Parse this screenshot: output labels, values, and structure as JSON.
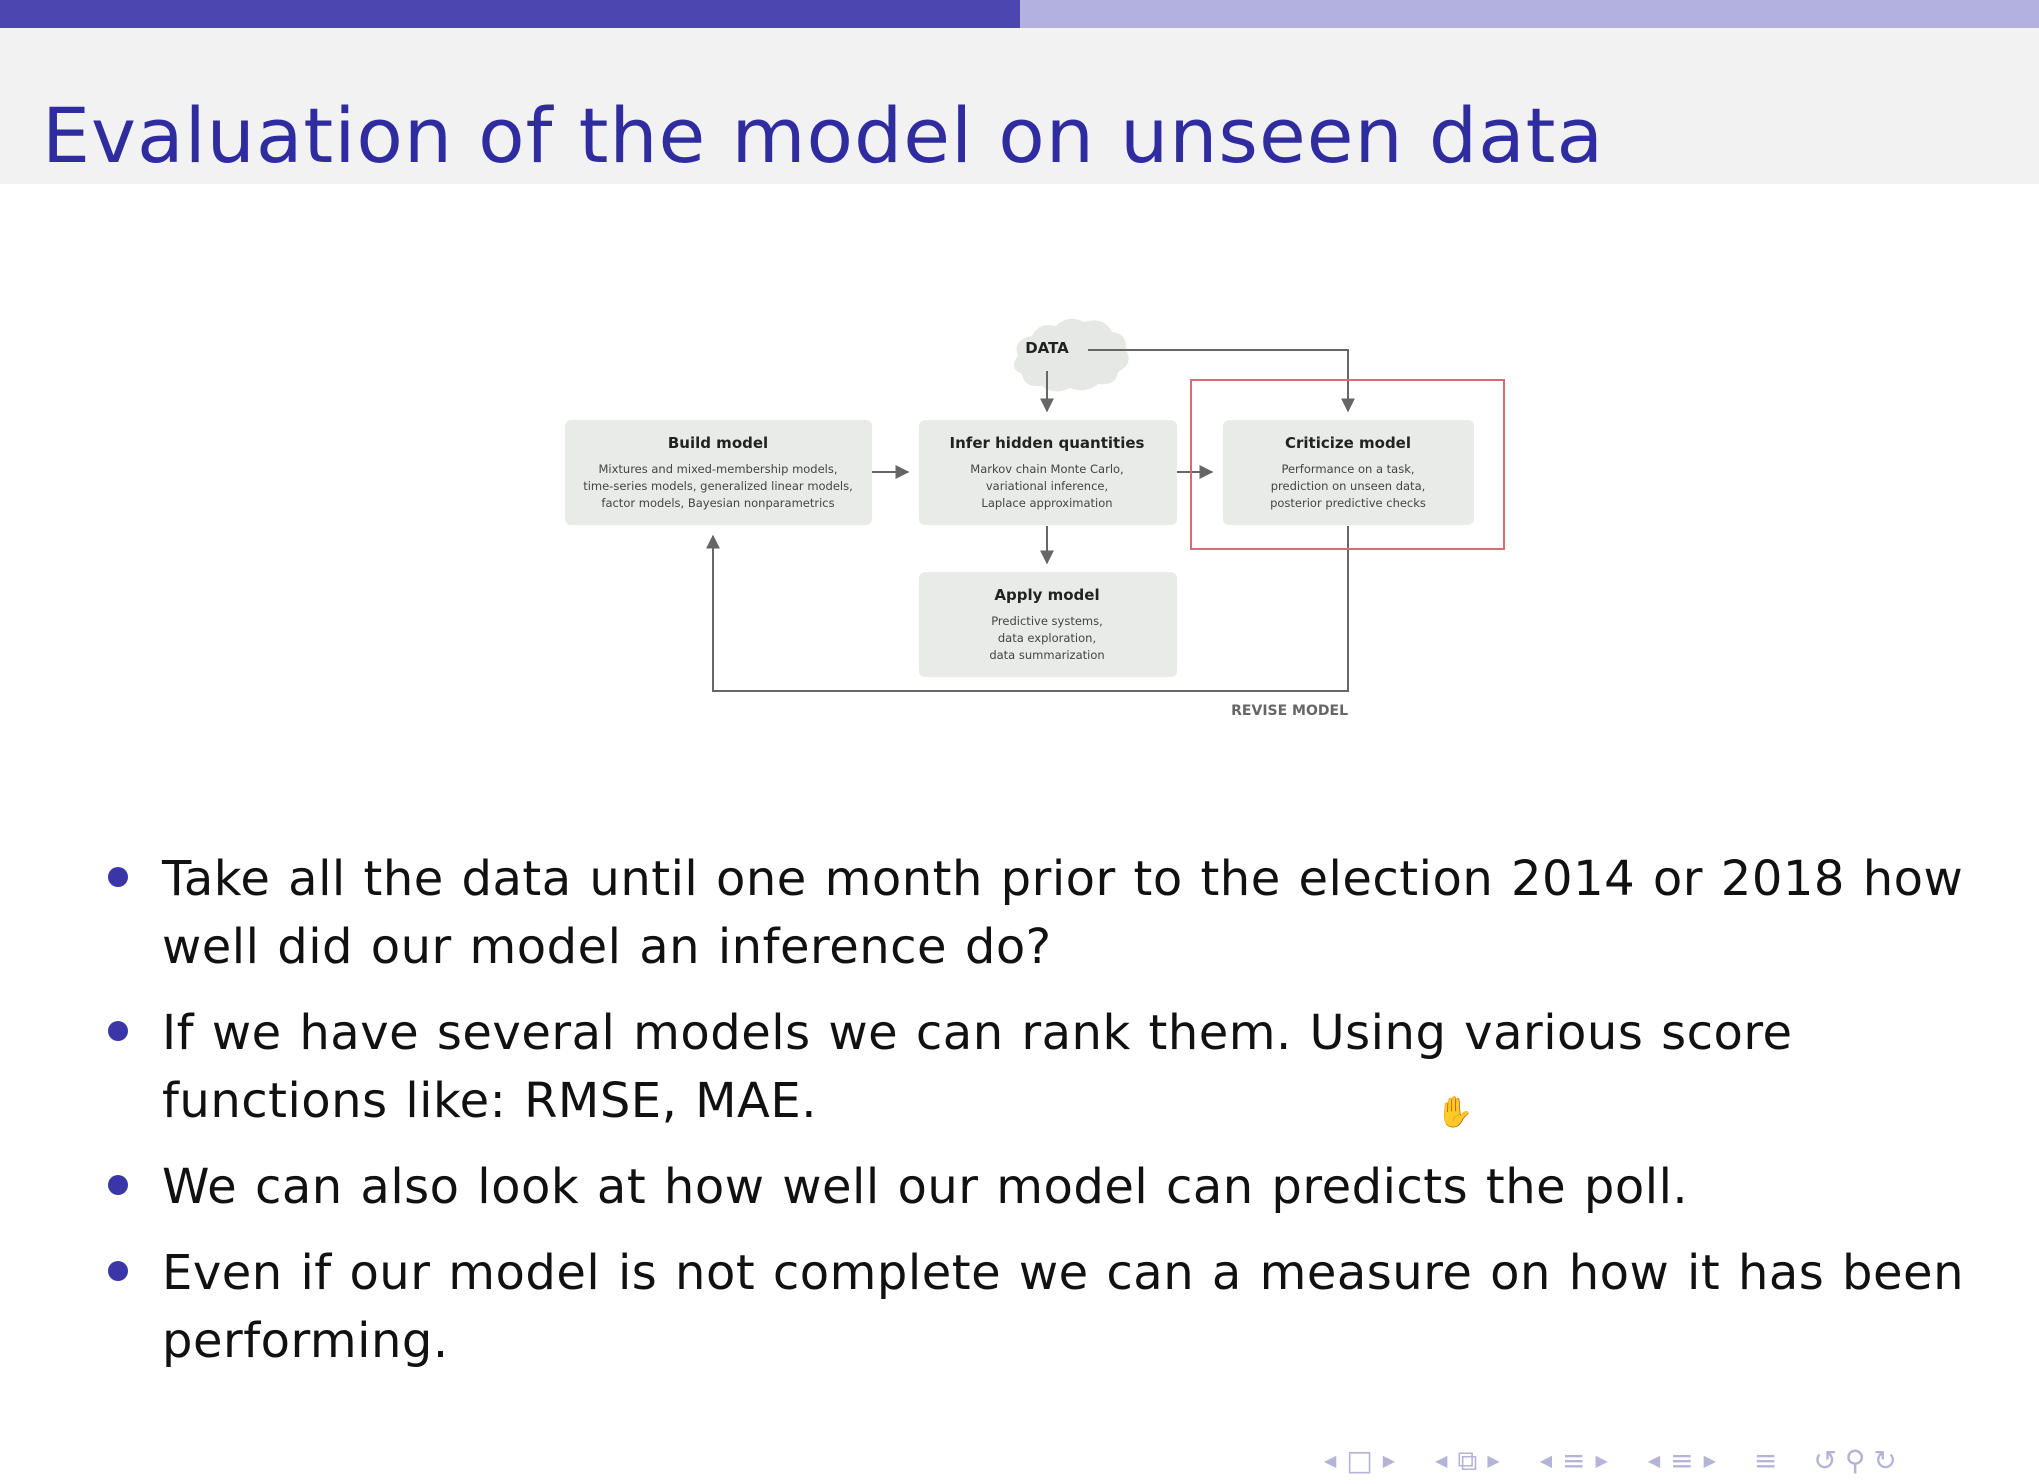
{
  "slide": {
    "title": "Evaluation of the model on unseen data",
    "progress_fraction": 0.5
  },
  "diagram": {
    "data_label": "DATA",
    "boxes": [
      {
        "title": "Build model",
        "lines": [
          "Mixtures and mixed-membership models,",
          "time-series models, generalized linear models,",
          "factor models, Bayesian nonparametrics"
        ]
      },
      {
        "title": "Infer hidden quantities",
        "lines": [
          "Markov chain Monte Carlo,",
          "variational inference,",
          "Laplace approximation"
        ]
      },
      {
        "title": "Criticize model",
        "lines": [
          "Performance on a task,",
          "prediction on unseen data,",
          "posterior predictive checks"
        ]
      },
      {
        "title": "Apply model",
        "lines": [
          "Predictive systems,",
          "data exploration,",
          "data summarization"
        ]
      }
    ],
    "revise_label": "REVISE MODEL",
    "highlight_color": "#d96b72"
  },
  "bullets": [
    "Take all the data until one month prior to the election 2014 or 2018 how well did our model an inference do?",
    "If we have several models we can rank them.  Using various score functions like:  RMSE, MAE.",
    "We can also look at how well our model can predicts the poll.",
    "Even if our model is not complete we can a measure on how it has been performing."
  ],
  "colors": {
    "title": "#2f2ca0",
    "bullet": "#3a36a8",
    "progress_done": "#4c46b0",
    "progress_rest": "#b3b1de",
    "nav": "#b4b3d8"
  },
  "icons": {
    "cursor": "hand-pointer-icon",
    "nav": [
      "nav-prev-icon",
      "frame-icon",
      "nav-next-icon",
      "nav-prev-icon",
      "frames-icon",
      "nav-next-icon",
      "nav-prev-icon",
      "section-icon",
      "nav-next-icon",
      "nav-prev-icon",
      "subsection-icon",
      "nav-next-icon",
      "toc-icon",
      "undo-icon",
      "search-icon",
      "redo-icon"
    ]
  }
}
